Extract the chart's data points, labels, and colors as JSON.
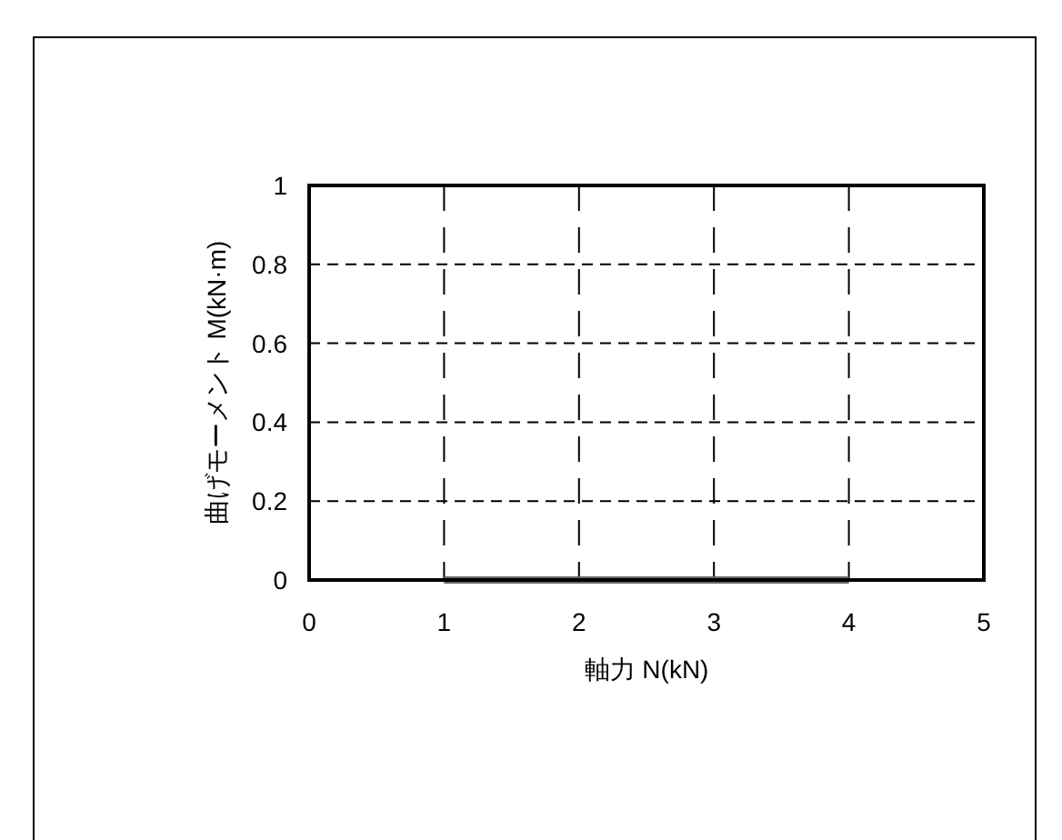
{
  "chart_data": {
    "type": "line",
    "xlabel": "軸力 N(kN)",
    "ylabel": "曲げモーメント M(kN·m)",
    "x": [
      1,
      4
    ],
    "series": [
      {
        "color": "#666666",
        "values": [
          0,
          0
        ]
      }
    ],
    "xlim": [
      0,
      5
    ],
    "xticks": [
      0,
      1,
      2,
      3,
      4,
      5
    ],
    "ylim": [
      0,
      1
    ],
    "yticks": [
      0,
      0.2,
      0.4,
      0.6,
      0.8,
      1
    ],
    "grid": true,
    "marker": "none",
    "line_style": "solid"
  }
}
